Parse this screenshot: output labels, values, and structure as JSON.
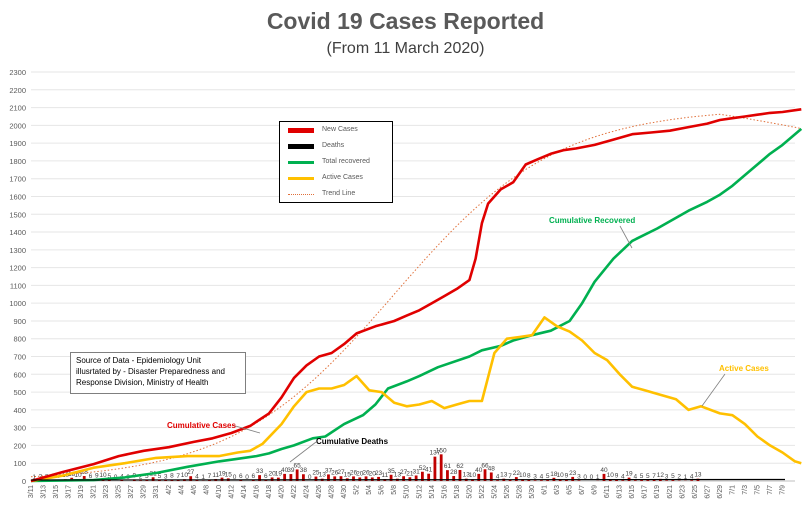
{
  "chart_data": {
    "type": "line",
    "title": "Covid 19 Cases Reported",
    "subtitle": "(From 11 March 2020)",
    "ylim": [
      0,
      2300
    ],
    "y_ticks": [
      0,
      100,
      200,
      300,
      400,
      500,
      600,
      700,
      800,
      900,
      1000,
      1100,
      1200,
      1300,
      1400,
      1500,
      1600,
      1700,
      1800,
      1900,
      2000,
      2100,
      2200,
      2300
    ],
    "x_tick_labels": [
      "3/11",
      "3/13",
      "3/15",
      "3/17",
      "3/19",
      "3/21",
      "3/23",
      "3/25",
      "3/27",
      "3/29",
      "3/31",
      "4/2",
      "4/4",
      "4/6",
      "4/8",
      "4/10",
      "4/12",
      "4/14",
      "4/16",
      "4/18",
      "4/20",
      "4/22",
      "4/24",
      "4/26",
      "4/28",
      "4/30",
      "5/2",
      "5/4",
      "5/6",
      "5/8",
      "5/10",
      "5/12",
      "5/14",
      "5/16",
      "5/18",
      "5/20",
      "5/22",
      "5/24",
      "5/26",
      "5/28",
      "5/30",
      "6/1",
      "6/3",
      "6/5",
      "6/7",
      "6/9",
      "6/11",
      "6/13",
      "6/15",
      "6/17",
      "6/19",
      "6/21",
      "6/23",
      "6/25",
      "6/27",
      "6/29",
      "7/1",
      "7/3",
      "7/5",
      "7/7",
      "7/9"
    ],
    "series": [
      {
        "name": "New Cases",
        "color": "#e00000",
        "kind": "bar",
        "label_values": [
          "1",
          "2",
          "2",
          "6",
          "7",
          "10",
          "18",
          "10",
          "28",
          "6",
          "9",
          "10",
          "5",
          "0",
          "4",
          "0",
          "9",
          "2",
          "5",
          "21",
          "5",
          "3",
          "8",
          "7",
          "10",
          "27",
          "4",
          "1",
          "7",
          "11",
          "19",
          "15",
          "0",
          "6",
          "0",
          "6",
          "33",
          "6",
          "20",
          "19",
          "40",
          "39",
          "65",
          "38",
          "0",
          "25",
          "13",
          "37",
          "26",
          "27",
          "15",
          "26",
          "20",
          "26",
          "20",
          "23",
          "11",
          "35",
          "13",
          "27",
          "21",
          "31",
          "52",
          "41",
          "137",
          "150",
          "61",
          "28",
          "62",
          "13",
          "10",
          "40",
          "66",
          "48",
          "4",
          "13",
          "7",
          "22",
          "10",
          "8",
          "3",
          "4",
          "5",
          "18",
          "10",
          "9",
          "23",
          "3",
          "0",
          "0",
          "1",
          "40",
          "10",
          "9",
          "4",
          "19",
          "4",
          "5",
          "5",
          "7",
          "12",
          "3",
          "5",
          "2",
          "1",
          "4",
          "13"
        ]
      },
      {
        "name": "Deaths",
        "color": "#000000",
        "kind": "bar"
      },
      {
        "name": "Total recovered",
        "color": "#00b050",
        "kind": "line",
        "x": [
          0,
          10,
          15,
          20,
          25,
          30,
          33,
          36,
          38,
          40,
          42,
          45,
          47,
          50,
          53,
          55,
          57,
          60,
          62,
          65,
          70,
          72,
          75,
          77,
          80,
          83,
          86,
          88,
          90,
          93,
          96,
          100,
          105,
          108,
          110,
          112,
          115,
          118,
          120,
          123
        ],
        "values": [
          0,
          5,
          20,
          45,
          80,
          110,
          125,
          140,
          155,
          180,
          200,
          240,
          250,
          320,
          370,
          430,
          520,
          560,
          590,
          640,
          700,
          735,
          760,
          790,
          820,
          845,
          900,
          1000,
          1120,
          1250,
          1350,
          1420,
          1520,
          1570,
          1610,
          1660,
          1750,
          1840,
          1890,
          1980
        ]
      },
      {
        "name": "Active Cases",
        "color": "#ffc000",
        "kind": "line",
        "x": [
          0,
          5,
          10,
          15,
          20,
          25,
          30,
          33,
          35,
          37,
          40,
          42,
          44,
          46,
          48,
          50,
          52,
          54,
          56,
          58,
          60,
          62,
          64,
          66,
          68,
          70,
          72,
          74,
          76,
          78,
          80,
          82,
          84,
          86,
          88,
          90,
          92,
          94,
          96,
          98,
          100,
          103,
          105,
          107,
          110,
          112,
          114,
          116,
          118,
          120,
          122,
          123
        ],
        "values": [
          0,
          30,
          75,
          100,
          130,
          140,
          140,
          160,
          170,
          210,
          320,
          420,
          500,
          520,
          520,
          540,
          590,
          510,
          500,
          440,
          420,
          430,
          450,
          410,
          430,
          450,
          450,
          720,
          800,
          810,
          820,
          920,
          870,
          840,
          790,
          720,
          680,
          600,
          530,
          510,
          490,
          460,
          400,
          420,
          380,
          370,
          320,
          250,
          200,
          160,
          110,
          100
        ]
      },
      {
        "name": "Cumulative Cases",
        "color": "#e00000",
        "kind": "line",
        "x": [
          0,
          5,
          10,
          14,
          18,
          22,
          26,
          29,
          32,
          35,
          38,
          40,
          42,
          44,
          46,
          48,
          50,
          52,
          55,
          58,
          60,
          62,
          64,
          66,
          68,
          70,
          71,
          72,
          73,
          75,
          77,
          79,
          81,
          83,
          85,
          87,
          90,
          93,
          96,
          99,
          102,
          105,
          108,
          110,
          112,
          114,
          116,
          118,
          120,
          123
        ],
        "values": [
          0,
          50,
          95,
          140,
          170,
          190,
          220,
          240,
          270,
          310,
          380,
          470,
          580,
          650,
          700,
          720,
          770,
          830,
          870,
          900,
          930,
          960,
          1000,
          1040,
          1080,
          1130,
          1250,
          1450,
          1560,
          1640,
          1680,
          1780,
          1810,
          1840,
          1860,
          1870,
          1890,
          1920,
          1950,
          1960,
          1970,
          1990,
          2010,
          2030,
          2040,
          2050,
          2060,
          2070,
          2075,
          2090
        ]
      },
      {
        "name": "Trend Line",
        "color": "#f4b183",
        "kind": "trend"
      }
    ],
    "legend": [
      "New Cases",
      "Deaths",
      "Total recovered",
      "Active Cases",
      "Trend Line"
    ],
    "annotations": [
      "Cumulative Cases",
      "Cumulative Deaths",
      "Cumulative Recovered",
      "Active Cases"
    ],
    "source_note": [
      "Source of Data - Epidemiology Unit",
      "illusrtated by - Disaster Preparedness and",
      "Response Division, Ministry of Health"
    ]
  }
}
